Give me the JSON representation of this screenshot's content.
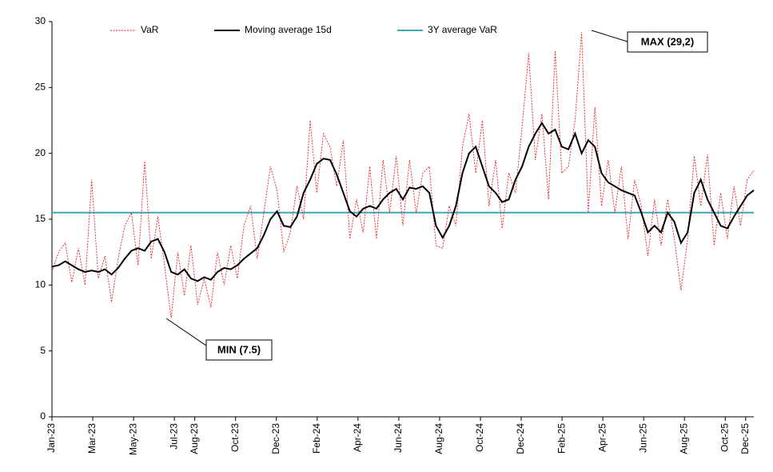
{
  "chart_data": {
    "type": "line",
    "xlim": [
      0,
      34.4
    ],
    "xticks": [
      {
        "value": 0,
        "label": "Jan-23"
      },
      {
        "value": 2,
        "label": "Mar-23"
      },
      {
        "value": 4,
        "label": "May-23"
      },
      {
        "value": 6,
        "label": "Jul-23"
      },
      {
        "value": 7,
        "label": "Aug-23"
      },
      {
        "value": 9,
        "label": "Oct-23"
      },
      {
        "value": 11,
        "label": "Dec-23"
      },
      {
        "value": 13,
        "label": "Feb-24"
      },
      {
        "value": 15,
        "label": "Apr-24"
      },
      {
        "value": 17,
        "label": "Jun-24"
      },
      {
        "value": 19,
        "label": "Aug-24"
      },
      {
        "value": 21,
        "label": "Oct-24"
      },
      {
        "value": 23,
        "label": "Dec-24"
      },
      {
        "value": 25,
        "label": "Feb-25"
      },
      {
        "value": 27,
        "label": "Apr-25"
      },
      {
        "value": 29,
        "label": "Jun-25"
      },
      {
        "value": 31,
        "label": "Aug-25"
      },
      {
        "value": 33,
        "label": "Oct-25"
      },
      {
        "value": 34,
        "label": "Dec-25"
      }
    ],
    "ylim": [
      0,
      30
    ],
    "yticks": [
      0,
      5,
      10,
      15,
      20,
      25,
      30
    ],
    "grid": false,
    "series": [
      {
        "name": "VaR",
        "color": "#e8202a",
        "dash": true,
        "values": [
          11,
          12.5,
          13.2,
          10.2,
          12.8,
          10.0,
          18,
          10.5,
          12.2,
          8.7,
          12,
          14.5,
          15.5,
          11.5,
          19.4,
          12,
          15.2,
          11.5,
          7.5,
          12.5,
          9.2,
          13,
          8.5,
          10.5,
          8.3,
          12.5,
          10,
          13,
          10.5,
          14.5,
          16,
          12,
          15.5,
          19,
          17.2,
          12.5,
          14,
          17.5,
          15,
          22.5,
          17,
          21.5,
          20.5,
          17.5,
          21,
          13.5,
          16.5,
          14,
          19,
          13.5,
          19.5,
          15.5,
          19.8,
          14.5,
          19.5,
          15.5,
          18.5,
          19,
          13,
          12.8,
          16,
          14.5,
          20.5,
          23,
          18.5,
          22.5,
          16,
          19.5,
          14.3,
          18.5,
          17,
          22,
          27.6,
          19.5,
          23,
          16.5,
          27.8,
          18.5,
          19,
          22.5,
          29.2,
          15.5,
          23.5,
          16,
          19.5,
          15.5,
          19,
          13.5,
          18,
          16,
          12.2,
          16.5,
          13,
          16.5,
          13.5,
          9.6,
          13.5,
          19.8,
          16,
          19.9,
          13,
          17,
          13.5,
          17.5,
          14.5,
          18,
          18.7
        ]
      },
      {
        "name": "Moving average 15d",
        "color": "#000000",
        "dash": false,
        "values": [
          11.4,
          11.5,
          11.8,
          11.5,
          11.2,
          11.0,
          11.1,
          11.0,
          11.2,
          10.8,
          11.3,
          12.0,
          12.6,
          12.8,
          12.6,
          13.3,
          13.5,
          12.5,
          11.0,
          10.8,
          11.2,
          10.5,
          10.3,
          10.6,
          10.4,
          11.0,
          11.3,
          11.2,
          11.5,
          12.0,
          12.4,
          12.8,
          13.8,
          15.0,
          15.6,
          14.5,
          14.4,
          15.2,
          17.0,
          18.0,
          19.2,
          19.6,
          19.5,
          18.4,
          17.0,
          15.6,
          15.2,
          15.8,
          16.0,
          15.8,
          16.5,
          17.0,
          17.3,
          16.5,
          17.4,
          17.3,
          17.5,
          17.0,
          14.5,
          13.6,
          14.5,
          16.0,
          18.5,
          20.0,
          20.5,
          19.0,
          17.5,
          17.0,
          16.3,
          16.5,
          18.0,
          19.0,
          20.5,
          21.5,
          22.3,
          21.5,
          21.8,
          20.5,
          20.3,
          21.5,
          20.0,
          21.0,
          20.5,
          18.5,
          17.8,
          17.5,
          17.2,
          17.0,
          16.8,
          15.5,
          14.0,
          14.5,
          14.0,
          15.5,
          14.8,
          13.2,
          14.0,
          17.0,
          18.0,
          16.5,
          15.5,
          14.5,
          14.3,
          15.2,
          16.0,
          16.8,
          17.2
        ]
      }
    ],
    "reference_line": {
      "name": "3Y average VaR",
      "color": "#3fa7b5",
      "value": 15.5
    },
    "annotations": [
      {
        "text": "MIN (7.5)"
      },
      {
        "text": "MAX (29,2)"
      }
    ]
  }
}
